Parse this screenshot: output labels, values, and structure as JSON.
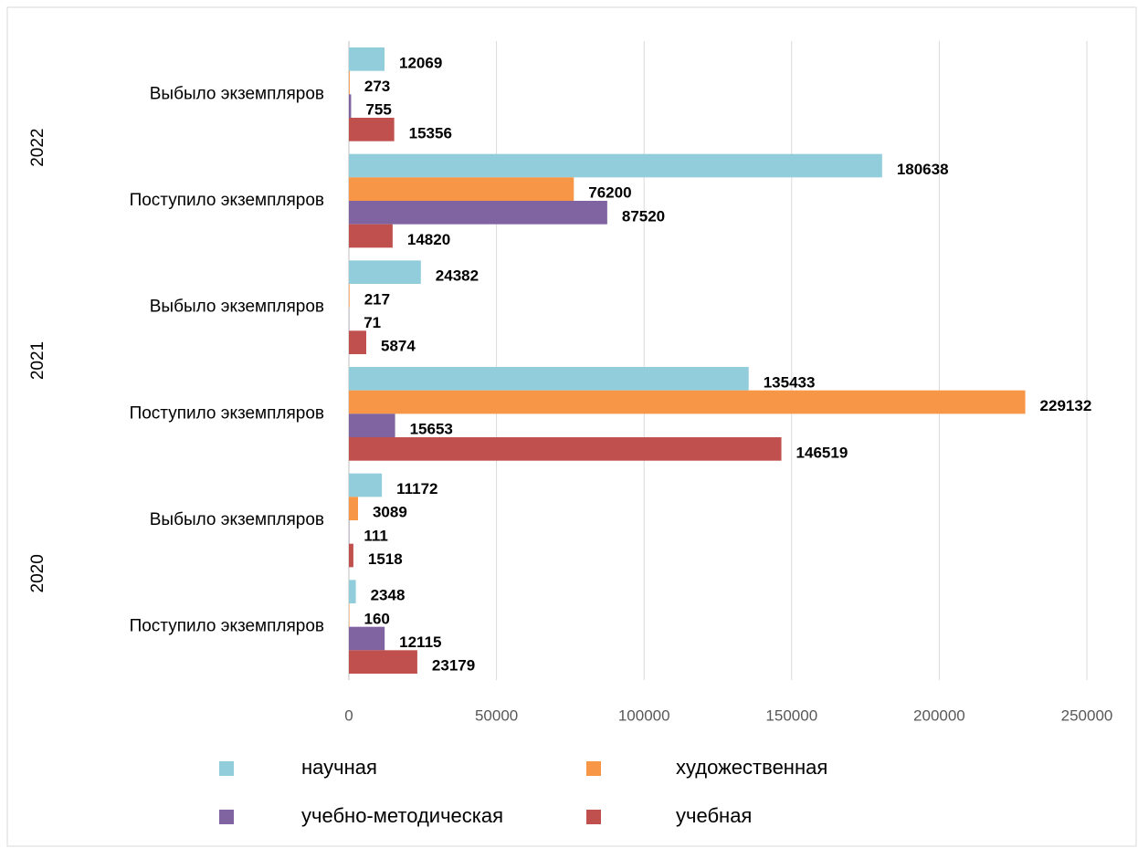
{
  "chart_data": {
    "type": "hbar",
    "groups": [
      {
        "name": "2022",
        "categories": [
          "Выбыло экземпляров",
          "Поступило экземпляров"
        ]
      },
      {
        "name": "2021",
        "categories": [
          "Выбыло экземпляров",
          "Поступило экземпляров"
        ]
      },
      {
        "name": "2020",
        "categories": [
          "Выбыло экземпляров",
          "Поступило экземпляров"
        ]
      }
    ],
    "series": [
      {
        "name": "научная",
        "color": "#92CDDC",
        "values": [
          12069,
          180638,
          24382,
          135433,
          11172,
          2348
        ]
      },
      {
        "name": "художественная",
        "color": "#F79646",
        "values": [
          273,
          76200,
          217,
          229132,
          3089,
          160
        ]
      },
      {
        "name": "учебно-методическая",
        "color": "#8064A2",
        "values": [
          755,
          87520,
          71,
          15653,
          111,
          12115
        ]
      },
      {
        "name": "учебная",
        "color": "#C0504D",
        "values": [
          15356,
          14820,
          5874,
          146519,
          1518,
          23179
        ]
      }
    ],
    "xlim": [
      0,
      250000
    ],
    "xticks": [
      0,
      50000,
      100000,
      150000,
      200000,
      250000
    ],
    "grid": true,
    "legend": "bottom"
  }
}
